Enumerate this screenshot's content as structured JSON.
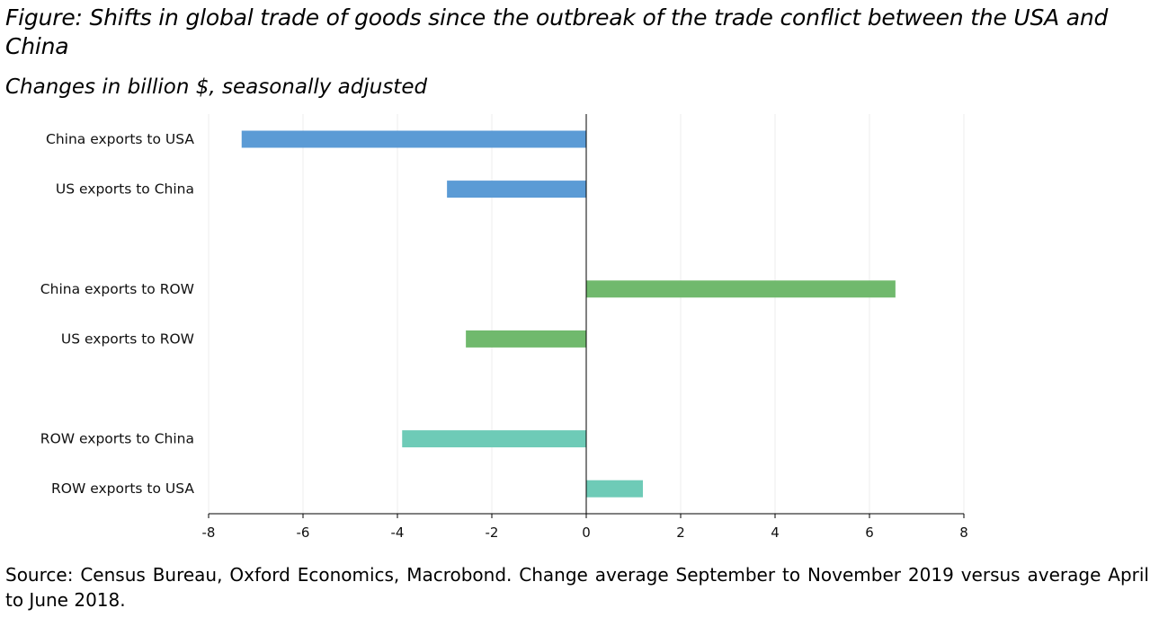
{
  "title": "Figure: Shifts in global trade of goods since the outbreak of the trade conflict between the USA and China",
  "subtitle": "Changes in billion $, seasonally adjusted",
  "source": "Source: Census Bureau, Oxford Economics, Macrobond. Change average September to November 2019 versus average April to June 2018.",
  "colors": {
    "group1": "#5b9bd5",
    "group2": "#70b96d",
    "group3": "#6ecbb7"
  },
  "chart_data": {
    "type": "bar",
    "orientation": "horizontal",
    "categories": [
      "China exports to USA",
      "US exports to China",
      "",
      "China exports to ROW",
      "US exports to ROW",
      "",
      "ROW exports to China",
      "ROW exports to USA"
    ],
    "values": [
      -7.3,
      -2.95,
      null,
      6.55,
      -2.55,
      null,
      -3.9,
      1.2
    ],
    "bar_color_groups": [
      "group1",
      "group1",
      null,
      "group2",
      "group2",
      null,
      "group3",
      "group3"
    ],
    "xlim": [
      -8,
      8
    ],
    "xticks": [
      -8,
      -6,
      -4,
      -2,
      0,
      2,
      4,
      6,
      8
    ],
    "xtick_labels": [
      "-8",
      "-6",
      "-4",
      "-2",
      "0",
      "2",
      "4",
      "6",
      "8"
    ],
    "grid": "vertical",
    "legend": "none"
  }
}
